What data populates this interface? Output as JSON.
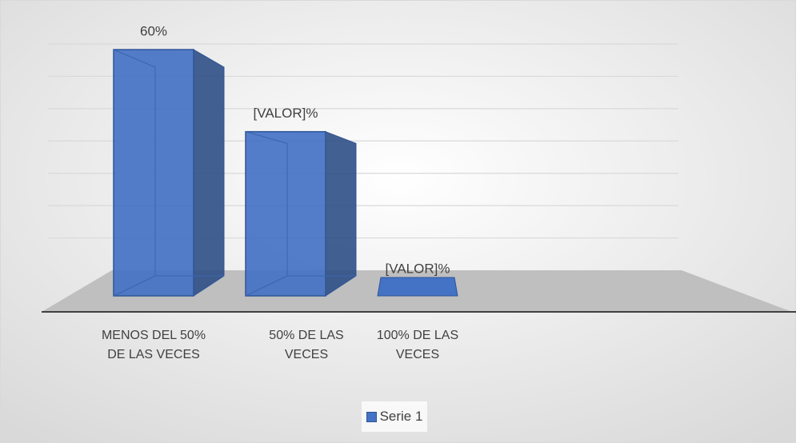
{
  "chart_data": {
    "type": "bar3d",
    "categories": [
      "MENOS DEL 50% DE LAS VECES",
      "50% DE LAS VECES",
      "100% DE LAS VECES"
    ],
    "series": [
      {
        "name": "Serie 1",
        "color": "#4472c4",
        "values": [
          60,
          40,
          0
        ],
        "value_labels": [
          "60%",
          "[VALOR]%",
          "[VALOR]%"
        ]
      }
    ],
    "ylim": [
      0,
      70
    ],
    "yticks": [
      0,
      10,
      20,
      30,
      40,
      50,
      60,
      70
    ],
    "grid": true,
    "legend": "bottom"
  }
}
